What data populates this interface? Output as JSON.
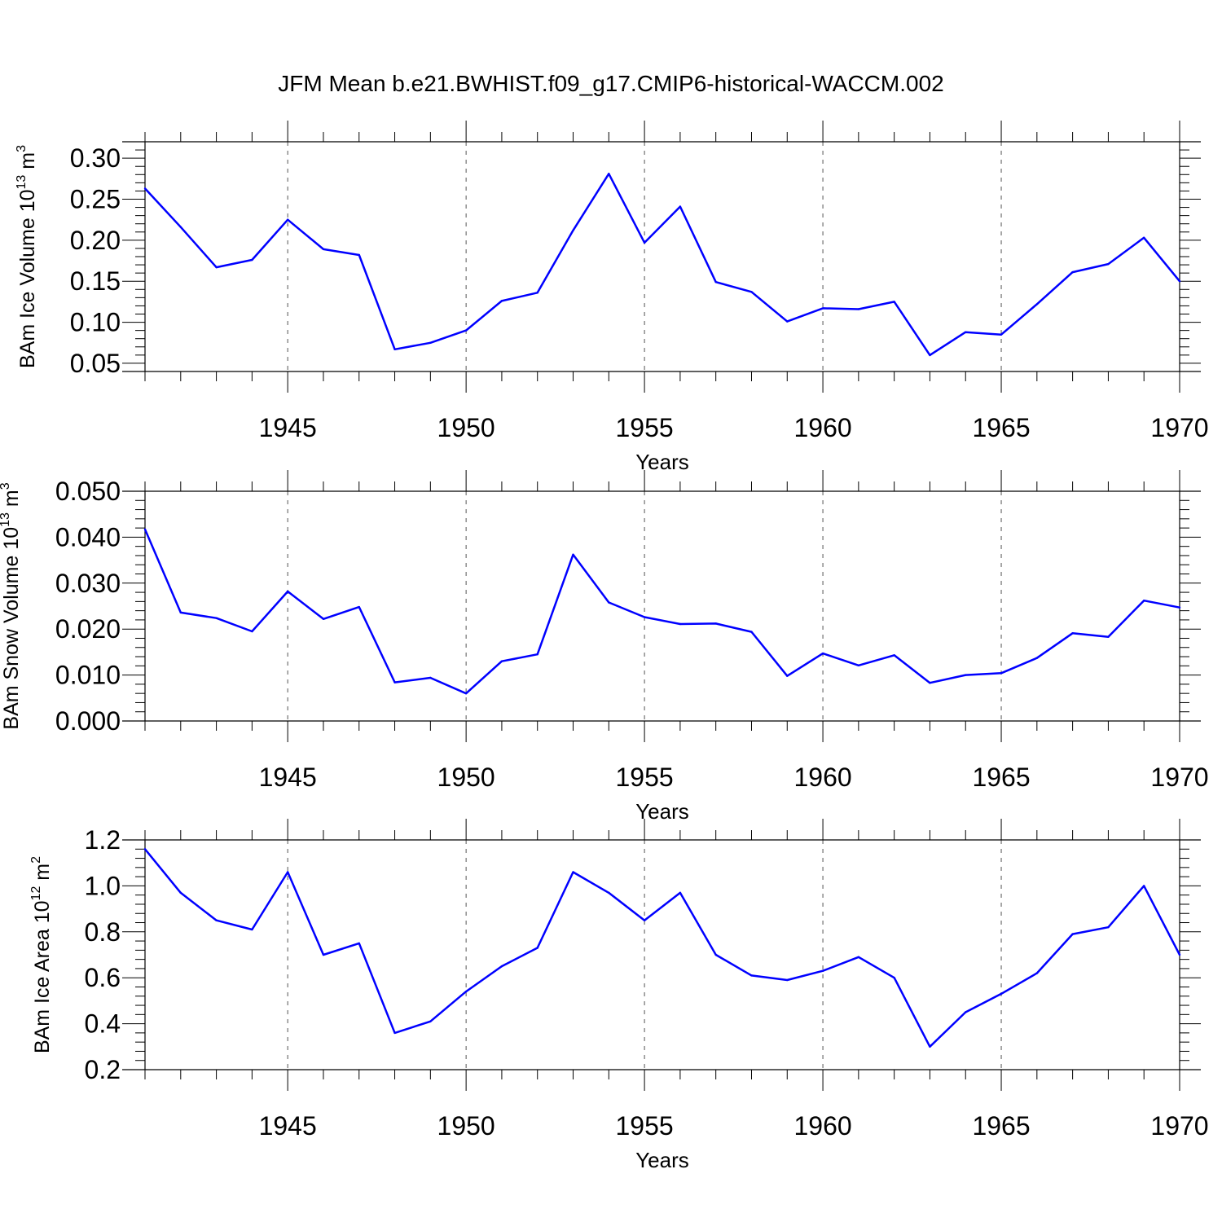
{
  "title": "JFM Mean b.e21.BWHIST.f09_g17.CMIP6-historical-WACCM.002",
  "colors": {
    "line": "#0000ff",
    "axis": "#000000",
    "grid": "#555555",
    "background": "#ffffff"
  },
  "chart_data": [
    {
      "type": "line",
      "ylabel": {
        "main": "BAm Ice Volume 10",
        "sup": "13",
        "mid": " m",
        "sup2": "3"
      },
      "xlabel": "Years",
      "xlim": [
        1941,
        1970
      ],
      "ylim": [
        0.04,
        0.32
      ],
      "yticks": [
        0.05,
        0.1,
        0.15,
        0.2,
        0.25,
        0.3
      ],
      "ytick_labels": [
        "0.05",
        "0.10",
        "0.15",
        "0.20",
        "0.25",
        "0.30"
      ],
      "xticks": [
        1945,
        1950,
        1955,
        1960,
        1965,
        1970
      ],
      "xtick_labels": [
        "1945",
        "1950",
        "1955",
        "1960",
        "1965",
        "1970"
      ],
      "vertical_grid": "dashed",
      "x": [
        1941,
        1942,
        1943,
        1944,
        1945,
        1946,
        1947,
        1948,
        1949,
        1950,
        1951,
        1952,
        1953,
        1954,
        1955,
        1956,
        1957,
        1958,
        1959,
        1960,
        1961,
        1962,
        1963,
        1964,
        1965,
        1966,
        1967,
        1968,
        1969,
        1970
      ],
      "values": [
        0.263,
        0.216,
        0.167,
        0.176,
        0.225,
        0.189,
        0.182,
        0.067,
        0.075,
        0.09,
        0.126,
        0.136,
        0.212,
        0.281,
        0.197,
        0.241,
        0.149,
        0.137,
        0.101,
        0.117,
        0.116,
        0.125,
        0.06,
        0.088,
        0.085,
        0.122,
        0.161,
        0.171,
        0.203,
        0.15
      ]
    },
    {
      "type": "line",
      "ylabel": {
        "main": "BAm Snow Volume 10",
        "sup": "13",
        "mid": " m",
        "sup2": "3"
      },
      "xlabel": "Years",
      "xlim": [
        1941,
        1970
      ],
      "ylim": [
        0.0,
        0.05
      ],
      "yticks": [
        0.0,
        0.01,
        0.02,
        0.03,
        0.04,
        0.05
      ],
      "ytick_labels": [
        "0.000",
        "0.010",
        "0.020",
        "0.030",
        "0.040",
        "0.050"
      ],
      "xticks": [
        1945,
        1950,
        1955,
        1960,
        1965,
        1970
      ],
      "xtick_labels": [
        "1945",
        "1950",
        "1955",
        "1960",
        "1965",
        "1970"
      ],
      "vertical_grid": "dashed",
      "x": [
        1941,
        1942,
        1943,
        1944,
        1945,
        1946,
        1947,
        1948,
        1949,
        1950,
        1951,
        1952,
        1953,
        1954,
        1955,
        1956,
        1957,
        1958,
        1959,
        1960,
        1961,
        1962,
        1963,
        1964,
        1965,
        1966,
        1967,
        1968,
        1969,
        1970
      ],
      "values": [
        0.0417,
        0.0236,
        0.0224,
        0.0195,
        0.0282,
        0.0222,
        0.0248,
        0.0084,
        0.0094,
        0.006,
        0.013,
        0.0145,
        0.0362,
        0.0258,
        0.0226,
        0.0211,
        0.0212,
        0.0194,
        0.0098,
        0.0147,
        0.0121,
        0.0143,
        0.0083,
        0.01,
        0.0104,
        0.0137,
        0.0191,
        0.0183,
        0.0262,
        0.0247
      ]
    },
    {
      "type": "line",
      "ylabel": {
        "main": "BAm Ice Area 10",
        "sup": "12",
        "mid": " m",
        "sup2": "2"
      },
      "xlabel": "Years",
      "xlim": [
        1941,
        1970
      ],
      "ylim": [
        0.2,
        1.2
      ],
      "yticks": [
        0.2,
        0.4,
        0.6,
        0.8,
        1.0,
        1.2
      ],
      "ytick_labels": [
        "0.2",
        "0.4",
        "0.6",
        "0.8",
        "1.0",
        "1.2"
      ],
      "xticks": [
        1945,
        1950,
        1955,
        1960,
        1965,
        1970
      ],
      "xtick_labels": [
        "1945",
        "1950",
        "1955",
        "1960",
        "1965",
        "1970"
      ],
      "vertical_grid": "dashed",
      "x": [
        1941,
        1942,
        1943,
        1944,
        1945,
        1946,
        1947,
        1948,
        1949,
        1950,
        1951,
        1952,
        1953,
        1954,
        1955,
        1956,
        1957,
        1958,
        1959,
        1960,
        1961,
        1962,
        1963,
        1964,
        1965,
        1966,
        1967,
        1968,
        1969,
        1970
      ],
      "values": [
        1.16,
        0.97,
        0.85,
        0.81,
        1.06,
        0.7,
        0.75,
        0.36,
        0.41,
        0.54,
        0.65,
        0.73,
        1.06,
        0.97,
        0.85,
        0.97,
        0.7,
        0.61,
        0.59,
        0.63,
        0.69,
        0.6,
        0.3,
        0.45,
        0.53,
        0.62,
        0.79,
        0.82,
        1.0,
        0.7
      ]
    }
  ]
}
